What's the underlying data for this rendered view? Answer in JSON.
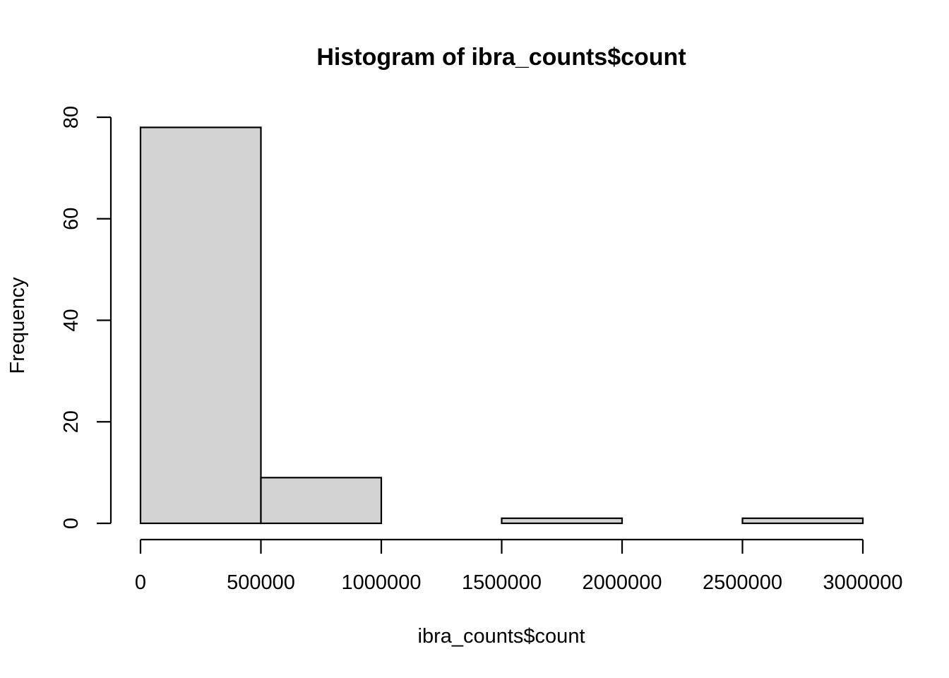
{
  "chart_data": {
    "type": "bar",
    "title": "Histogram of ibra_counts$count",
    "xlabel": "ibra_counts$count",
    "ylabel": "Frequency",
    "bins": [
      {
        "from": 0,
        "to": 500000,
        "count": 78
      },
      {
        "from": 500000,
        "to": 1000000,
        "count": 9
      },
      {
        "from": 1000000,
        "to": 1500000,
        "count": 0
      },
      {
        "from": 1500000,
        "to": 2000000,
        "count": 1
      },
      {
        "from": 2000000,
        "to": 2500000,
        "count": 0
      },
      {
        "from": 2500000,
        "to": 3000000,
        "count": 1
      }
    ],
    "xlim": [
      0,
      3000000
    ],
    "ylim": [
      0,
      80
    ],
    "x_ticks": [
      0,
      500000,
      1000000,
      1500000,
      2000000,
      2500000,
      3000000
    ],
    "x_tick_labels": [
      "0",
      "500000",
      "1000000",
      "1500000",
      "2000000",
      "2500000",
      "3000000"
    ],
    "y_ticks": [
      0,
      20,
      40,
      60,
      80
    ],
    "y_tick_labels": [
      "0",
      "20",
      "40",
      "60",
      "80"
    ],
    "bar_color": "#d3d3d3",
    "grid": false,
    "legend": "none"
  }
}
